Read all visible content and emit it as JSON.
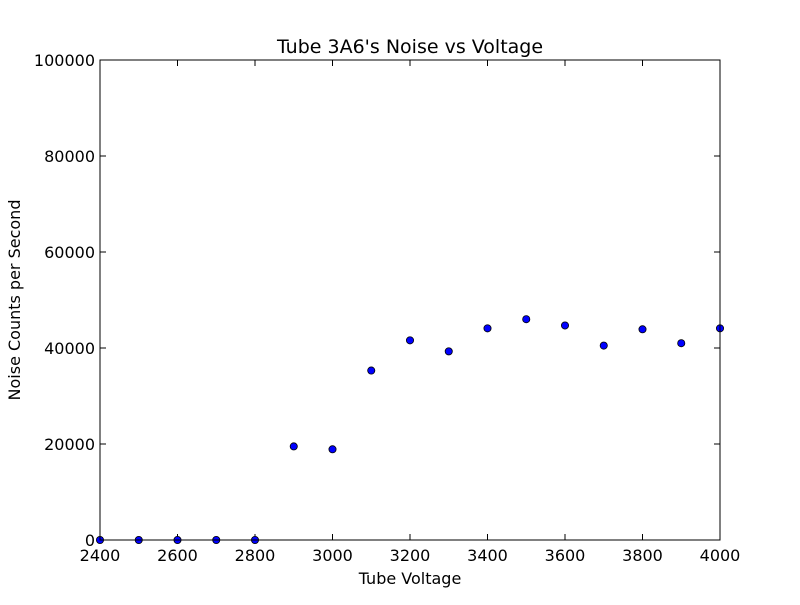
{
  "chart_data": {
    "type": "scatter",
    "title": "Tube 3A6's Noise vs Voltage",
    "xlabel": "Tube Voltage",
    "ylabel": "Noise Counts per Second",
    "xlim": [
      2400,
      4000
    ],
    "ylim": [
      0,
      100000
    ],
    "xticks": [
      2400,
      2600,
      2800,
      3000,
      3200,
      3400,
      3600,
      3800,
      4000
    ],
    "yticks": [
      0,
      20000,
      40000,
      60000,
      80000,
      100000
    ],
    "grid": false,
    "marker_color": "#0000ff",
    "points": [
      {
        "x": 2400,
        "y": 0
      },
      {
        "x": 2500,
        "y": 0
      },
      {
        "x": 2600,
        "y": 0
      },
      {
        "x": 2700,
        "y": 0
      },
      {
        "x": 2800,
        "y": 0
      },
      {
        "x": 2900,
        "y": 19500
      },
      {
        "x": 3000,
        "y": 18900
      },
      {
        "x": 3100,
        "y": 35300
      },
      {
        "x": 3200,
        "y": 41600
      },
      {
        "x": 3300,
        "y": 39300
      },
      {
        "x": 3400,
        "y": 44100
      },
      {
        "x": 3500,
        "y": 46000
      },
      {
        "x": 3600,
        "y": 44700
      },
      {
        "x": 3700,
        "y": 40500
      },
      {
        "x": 3800,
        "y": 43900
      },
      {
        "x": 3900,
        "y": 41000
      },
      {
        "x": 4000,
        "y": 44100
      }
    ]
  }
}
